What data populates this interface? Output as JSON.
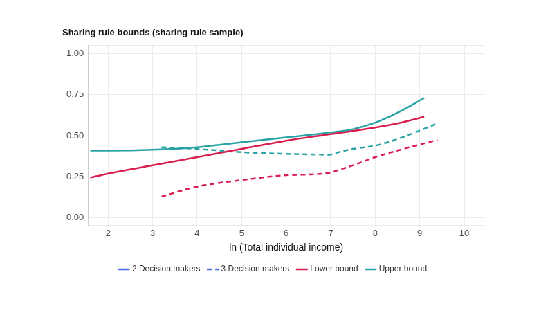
{
  "chart_data": {
    "type": "line",
    "title": "Sharing rule bounds (sharing rule sample)",
    "x_label": "ln (Total individual income)",
    "xlim": [
      1.55,
      10.45
    ],
    "xticks": [
      2,
      3,
      4,
      5,
      6,
      7,
      8,
      9,
      10
    ],
    "ylim": [
      -0.05,
      1.05
    ],
    "yticks": [
      {
        "value": 0,
        "label": "0.00"
      },
      {
        "value": 0.25,
        "label": "0.25"
      },
      {
        "value": 0.5,
        "label": "0.50"
      },
      {
        "value": 0.75,
        "label": "0.75"
      },
      {
        "value": 1,
        "label": "1.00"
      }
    ],
    "grid": true,
    "legend": "bottom",
    "groups": [
      {
        "name": "2 Decision makers",
        "color": "#4a6de5",
        "line_style": "solid"
      },
      {
        "name": "3 Decision makers",
        "color": "#4a6de5",
        "line_style": "dashed"
      }
    ],
    "series": [
      {
        "name": "Lower bound",
        "group": "2 Decision makers",
        "color": "#d81e4f",
        "line_style": "solid",
        "x": [
          1.6,
          2,
          3,
          4,
          5,
          6,
          7,
          8,
          8.5,
          9.1
        ],
        "values": [
          0.245,
          0.27,
          0.32,
          0.37,
          0.42,
          0.47,
          0.51,
          0.55,
          0.575,
          0.615
        ]
      },
      {
        "name": "Upper bound",
        "group": "2 Decision makers",
        "color": "#27a3a6",
        "line_style": "solid",
        "x": [
          1.6,
          2,
          3,
          4,
          5,
          6,
          7,
          7.5,
          8,
          8.5,
          9.1
        ],
        "values": [
          0.41,
          0.41,
          0.415,
          0.43,
          0.46,
          0.49,
          0.52,
          0.54,
          0.58,
          0.64,
          0.73
        ]
      },
      {
        "name": "Lower bound",
        "group": "3 Decision makers",
        "color": "#d81e4f",
        "line_style": "dashed",
        "x": [
          3.2,
          4,
          5,
          6,
          7,
          7.1,
          7.5,
          8,
          8.5,
          9.4
        ],
        "values": [
          0.13,
          0.19,
          0.23,
          0.26,
          0.275,
          0.285,
          0.32,
          0.37,
          0.41,
          0.475
        ]
      },
      {
        "name": "Upper bound",
        "group": "3 Decision makers",
        "color": "#27a3a6",
        "line_style": "dashed",
        "x": [
          3.2,
          4,
          5,
          6,
          7,
          7.05,
          7.5,
          8,
          8.5,
          9.4
        ],
        "values": [
          0.43,
          0.42,
          0.4,
          0.39,
          0.385,
          0.39,
          0.42,
          0.44,
          0.48,
          0.575
        ]
      }
    ]
  }
}
